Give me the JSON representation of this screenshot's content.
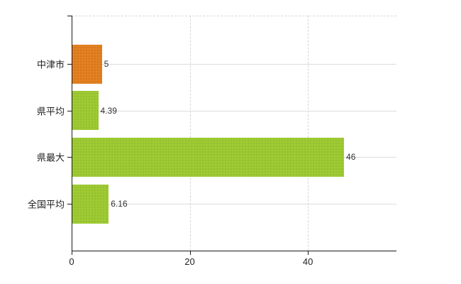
{
  "chart_data": {
    "type": "bar",
    "orientation": "horizontal",
    "title": "",
    "xlabel": "",
    "ylabel": "",
    "categories": [
      "中津市",
      "県平均",
      "県最大",
      "全国平均"
    ],
    "values": [
      5,
      4.39,
      46,
      6.16
    ],
    "value_labels": [
      "5",
      "4.39",
      "46",
      "6.16"
    ],
    "bar_colors": [
      "#e17c20",
      "#9bc832",
      "#9bc832",
      "#9bc832"
    ],
    "xlim": [
      0,
      55
    ],
    "x_ticks": [
      0,
      20,
      40
    ],
    "x_tick_labels": [
      "0",
      "20",
      "40"
    ],
    "grid": true,
    "legend": "none",
    "background_color": "#ffffff",
    "axis_color": "#1a1a1a",
    "h_gridline_color": "#dcdcdc",
    "v_gridline_color": "#d6d6d6",
    "text_color": "#222222"
  }
}
